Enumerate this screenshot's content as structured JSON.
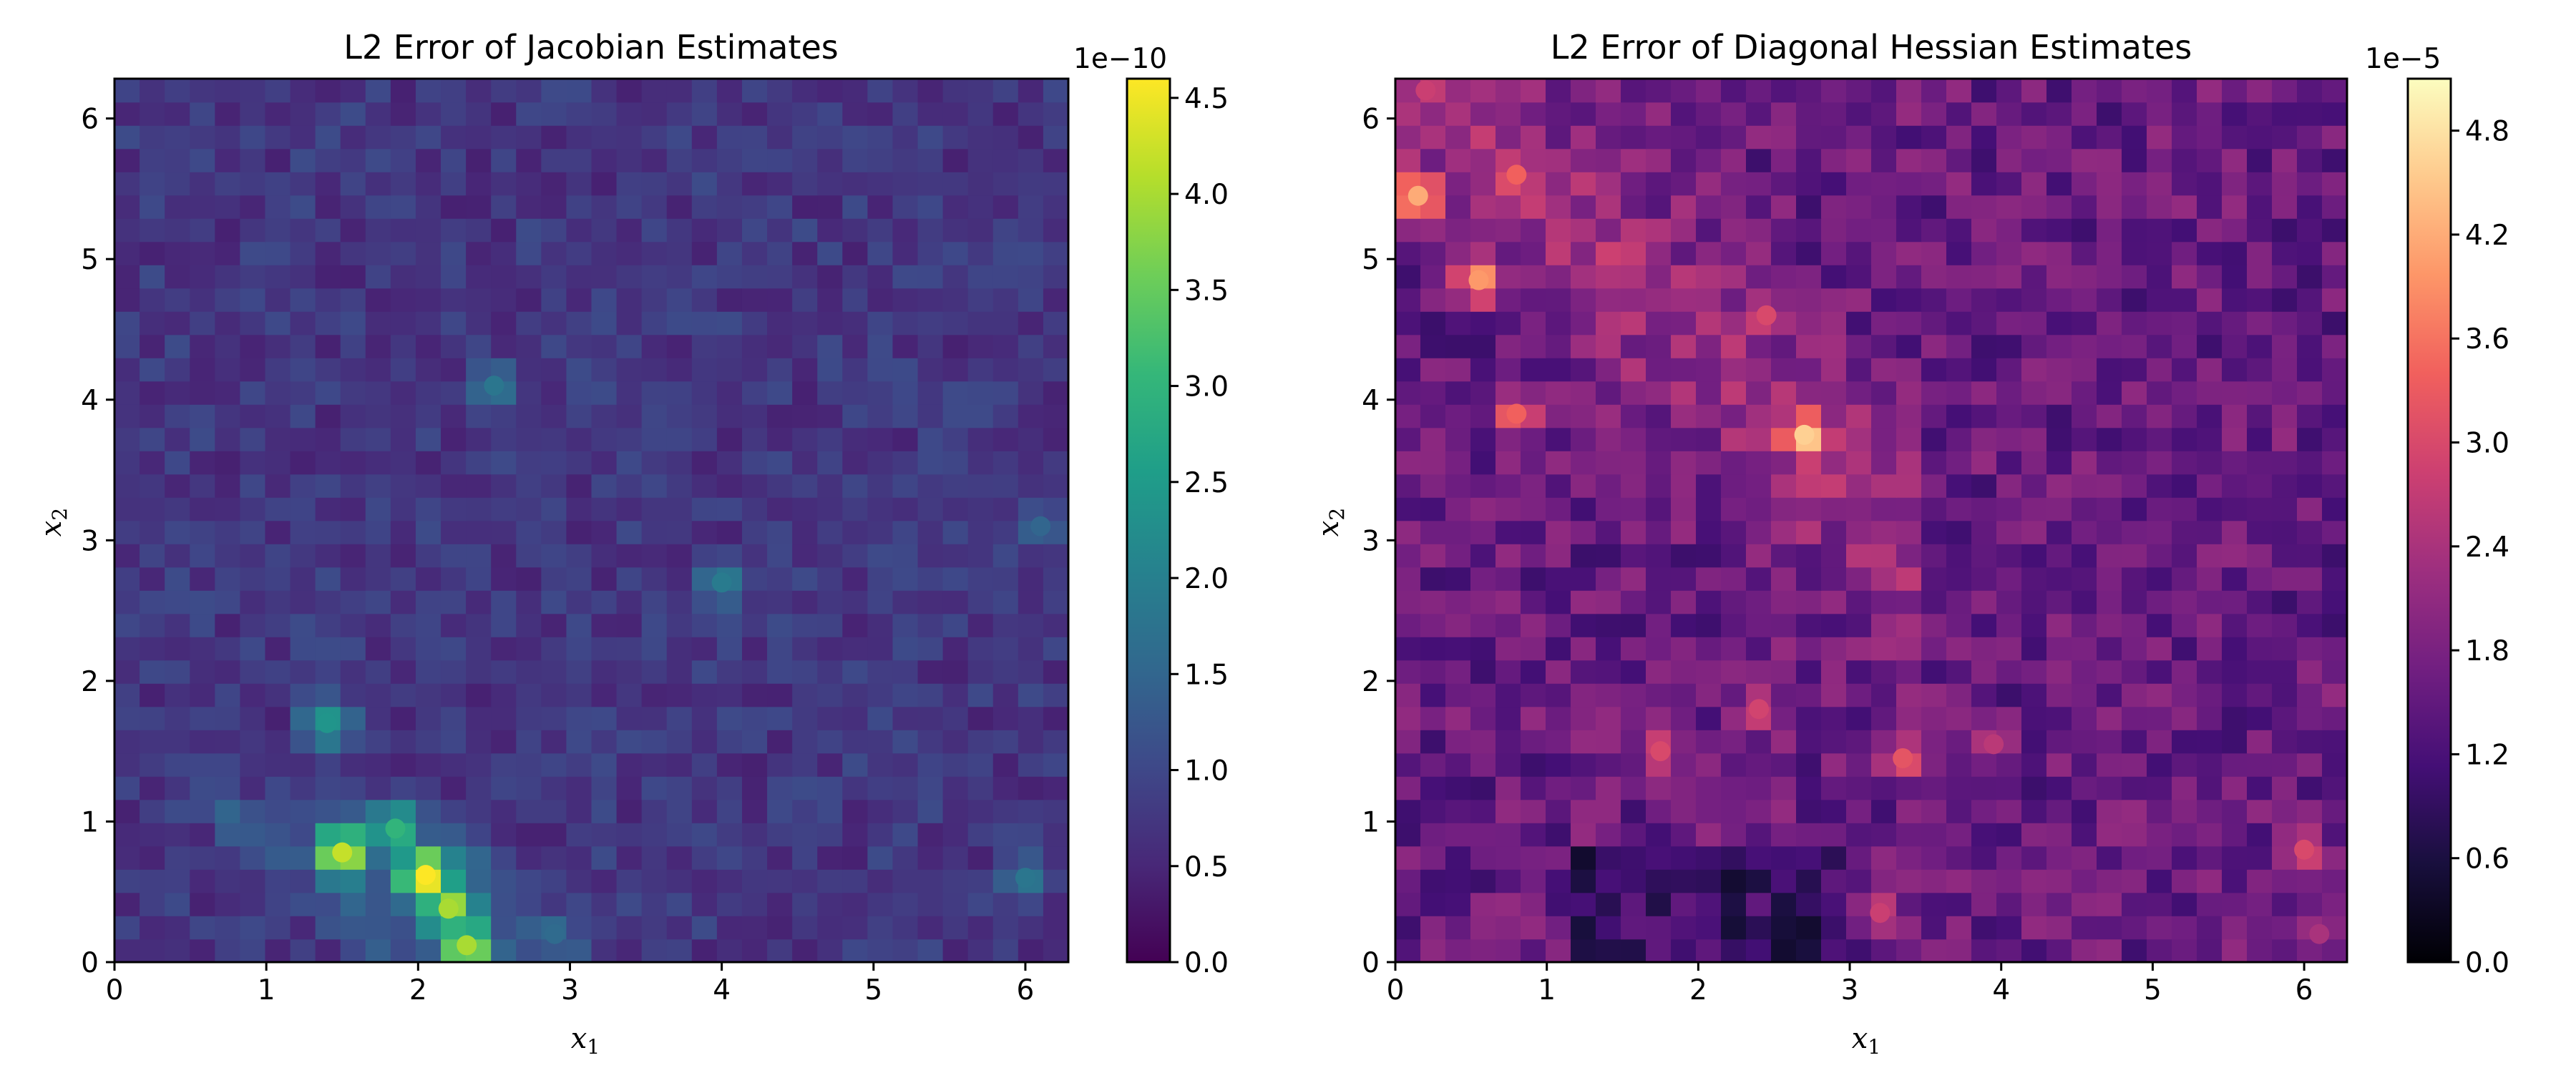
{
  "chart_data": [
    {
      "type": "heatmap",
      "title": "L2 Error of Jacobian Estimates",
      "xlabel": "x",
      "xlabel_sub": "1",
      "ylabel": "x",
      "ylabel_sub": "2",
      "xlim": [
        0,
        6.283
      ],
      "ylim": [
        0,
        6.283
      ],
      "xticks": [
        0,
        1,
        2,
        3,
        4,
        5,
        6
      ],
      "yticks": [
        0,
        1,
        2,
        3,
        4,
        5,
        6
      ],
      "colormap": "viridis",
      "colorbar": {
        "range": [
          0,
          4.6
        ],
        "ticks": [
          "0.0",
          "0.5",
          "1.0",
          "1.5",
          "2.0",
          "2.5",
          "3.0",
          "3.5",
          "4.0",
          "4.5"
        ],
        "tick_values": [
          0,
          0.5,
          1.0,
          1.5,
          2.0,
          2.5,
          3.0,
          3.5,
          4.0,
          4.5
        ],
        "exponent_label": "1e−10"
      },
      "hotspots": [
        {
          "x": 1.5,
          "y": 0.78,
          "value": 4.2
        },
        {
          "x": 2.05,
          "y": 0.62,
          "value": 4.6
        },
        {
          "x": 2.2,
          "y": 0.38,
          "value": 4.0
        },
        {
          "x": 2.32,
          "y": 0.12,
          "value": 4.0
        },
        {
          "x": 1.85,
          "y": 0.95,
          "value": 3.0
        },
        {
          "x": 1.4,
          "y": 1.7,
          "value": 2.4
        },
        {
          "x": 4.0,
          "y": 2.7,
          "value": 1.9
        },
        {
          "x": 2.5,
          "y": 4.1,
          "value": 1.8
        },
        {
          "x": 6.0,
          "y": 0.6,
          "value": 1.8
        },
        {
          "x": 6.1,
          "y": 3.1,
          "value": 1.5
        },
        {
          "x": 2.9,
          "y": 0.2,
          "value": 1.6
        }
      ]
    },
    {
      "type": "heatmap",
      "title": "L2 Error of Diagonal Hessian Estimates",
      "xlabel": "x",
      "xlabel_sub": "1",
      "ylabel": "x",
      "ylabel_sub": "2",
      "xlim": [
        0,
        6.283
      ],
      "ylim": [
        0,
        6.283
      ],
      "xticks": [
        0,
        1,
        2,
        3,
        4,
        5,
        6
      ],
      "yticks": [
        0,
        1,
        2,
        3,
        4,
        5,
        6
      ],
      "colormap": "magma",
      "colorbar": {
        "range": [
          0,
          5.1
        ],
        "ticks": [
          "0.0",
          "0.6",
          "1.2",
          "1.8",
          "2.4",
          "3.0",
          "3.6",
          "4.2",
          "4.8"
        ],
        "tick_values": [
          0,
          0.6,
          1.2,
          1.8,
          2.4,
          3.0,
          3.6,
          4.2,
          4.8
        ],
        "exponent_label": "1e−5"
      },
      "hotspots": [
        {
          "x": 0.15,
          "y": 5.45,
          "value": 4.2
        },
        {
          "x": 0.55,
          "y": 4.85,
          "value": 4.0
        },
        {
          "x": 2.7,
          "y": 3.75,
          "value": 4.6
        },
        {
          "x": 0.8,
          "y": 5.6,
          "value": 3.4
        },
        {
          "x": 0.8,
          "y": 3.9,
          "value": 3.4
        },
        {
          "x": 2.45,
          "y": 4.6,
          "value": 3.0
        },
        {
          "x": 3.35,
          "y": 1.45,
          "value": 3.2
        },
        {
          "x": 1.75,
          "y": 1.5,
          "value": 3.0
        },
        {
          "x": 2.4,
          "y": 1.8,
          "value": 2.9
        },
        {
          "x": 6.0,
          "y": 0.8,
          "value": 3.0
        },
        {
          "x": 3.2,
          "y": 0.35,
          "value": 2.8
        },
        {
          "x": 3.95,
          "y": 1.55,
          "value": 2.6
        },
        {
          "x": 0.2,
          "y": 6.2,
          "value": 2.8
        },
        {
          "x": 6.1,
          "y": 0.2,
          "value": 2.4
        }
      ]
    }
  ]
}
